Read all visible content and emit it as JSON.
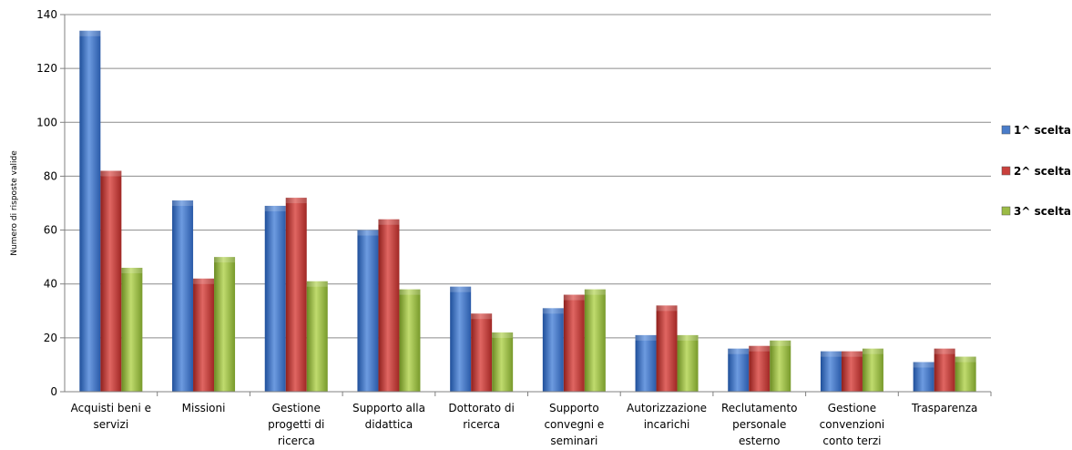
{
  "chart_data": {
    "type": "bar",
    "ylabel": "Numero di risposte valide",
    "xlabel": "",
    "ylim": [
      0,
      140
    ],
    "yticks": [
      0,
      20,
      40,
      60,
      80,
      100,
      120,
      140
    ],
    "grid": true,
    "legend_position": "right",
    "categories": [
      [
        "Acquisti beni e",
        "servizi"
      ],
      [
        "Missioni"
      ],
      [
        "Gestione",
        "progetti di",
        "ricerca"
      ],
      [
        "Supporto alla",
        "didattica"
      ],
      [
        "Dottorato di",
        "ricerca"
      ],
      [
        "Supporto",
        "convegni e",
        "seminari"
      ],
      [
        "Autorizzazione",
        "incarichi"
      ],
      [
        "Reclutamento",
        "personale",
        "esterno"
      ],
      [
        "Gestione",
        "convenzioni",
        "conto terzi"
      ],
      [
        "Trasparenza"
      ]
    ],
    "series": [
      {
        "name": "1^ scelta",
        "color": "#4a7cc9",
        "values": [
          134,
          71,
          69,
          60,
          39,
          31,
          21,
          16,
          15,
          11
        ]
      },
      {
        "name": "2^ scelta",
        "color": "#c9403c",
        "values": [
          82,
          42,
          72,
          64,
          29,
          36,
          32,
          17,
          15,
          16
        ]
      },
      {
        "name": "3^ scelta",
        "color": "#9bbb45",
        "values": [
          46,
          50,
          41,
          38,
          22,
          38,
          21,
          19,
          16,
          13
        ]
      }
    ]
  }
}
